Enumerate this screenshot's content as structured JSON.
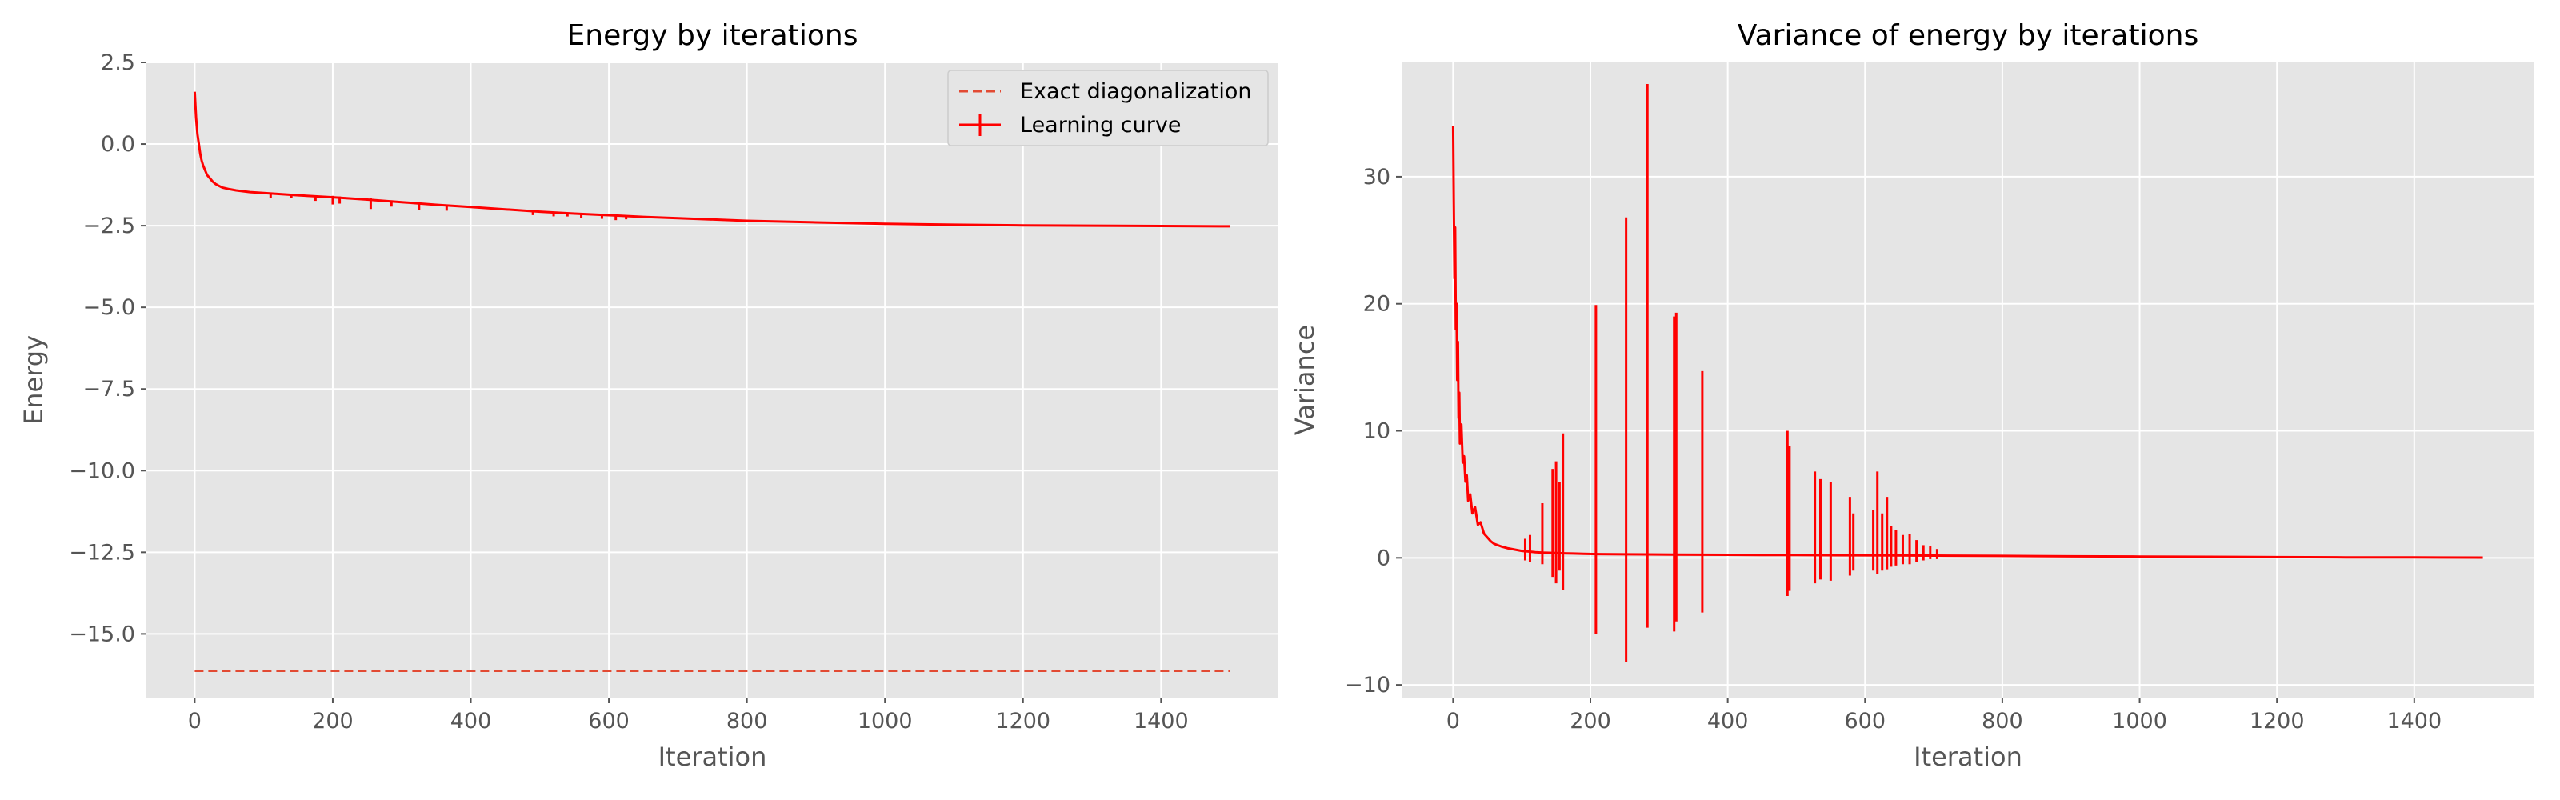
{
  "chart_data": [
    {
      "type": "line",
      "title": "Energy by iterations",
      "xlabel": "Iteration",
      "ylabel": "Energy",
      "xlim": [
        -70,
        1570
      ],
      "ylim": [
        -16.95,
        2.5
      ],
      "xticks": [
        0,
        200,
        400,
        600,
        800,
        1000,
        1200,
        1400
      ],
      "xtick_labels": [
        "0",
        "200",
        "400",
        "600",
        "800",
        "1000",
        "1200",
        "1400"
      ],
      "yticks": [
        2.5,
        0.0,
        -2.5,
        -5.0,
        -7.5,
        -10.0,
        -12.5,
        -15.0
      ],
      "ytick_labels": [
        "2.5",
        "0.0",
        "−2.5",
        "−5.0",
        "−7.5",
        "−10.0",
        "−12.5",
        "−15.0"
      ],
      "grid": true,
      "legend": {
        "placement": "upper right",
        "entries": [
          {
            "label": "Exact diagonalization",
            "style": "dashed"
          },
          {
            "label": "Learning curve",
            "style": "errorbar"
          }
        ]
      },
      "series": [
        {
          "name": "Exact diagonalization",
          "style": "dashed",
          "color": "#e24a33",
          "x": [
            0,
            1500
          ],
          "y": [
            -16.13,
            -16.13
          ]
        },
        {
          "name": "Learning curve",
          "style": "errorbar",
          "color": "#ff0000",
          "x": [
            0,
            2,
            4,
            6,
            8,
            10,
            12,
            15,
            18,
            22,
            26,
            30,
            35,
            40,
            50,
            60,
            80,
            100,
            150,
            200,
            250,
            300,
            350,
            400,
            450,
            500,
            550,
            600,
            650,
            700,
            800,
            900,
            1000,
            1100,
            1200,
            1300,
            1400,
            1500
          ],
          "y": [
            1.6,
            0.8,
            0.3,
            0.0,
            -0.3,
            -0.5,
            -0.65,
            -0.8,
            -0.95,
            -1.05,
            -1.15,
            -1.22,
            -1.28,
            -1.33,
            -1.38,
            -1.42,
            -1.47,
            -1.5,
            -1.57,
            -1.63,
            -1.7,
            -1.78,
            -1.86,
            -1.93,
            -2.0,
            -2.07,
            -2.13,
            -2.18,
            -2.23,
            -2.27,
            -2.35,
            -2.4,
            -2.44,
            -2.47,
            -2.49,
            -2.5,
            -2.51,
            -2.52
          ],
          "error_x": [
            110,
            140,
            175,
            200,
            210,
            255,
            285,
            325,
            365,
            490,
            520,
            540,
            560,
            590,
            610,
            625
          ],
          "error_y": [
            0.14,
            0.1,
            0.14,
            0.22,
            0.18,
            0.28,
            0.16,
            0.2,
            0.16,
            0.12,
            0.12,
            0.1,
            0.12,
            0.12,
            0.14,
            0.1
          ]
        }
      ]
    },
    {
      "type": "line",
      "title": "Variance of energy by iterations",
      "xlabel": "Iteration",
      "ylabel": "Variance",
      "xlim": [
        -75,
        1575
      ],
      "ylim": [
        -11.0,
        39.0
      ],
      "xticks": [
        0,
        200,
        400,
        600,
        800,
        1000,
        1200,
        1400
      ],
      "xtick_labels": [
        "0",
        "200",
        "400",
        "600",
        "800",
        "1000",
        "1200",
        "1400"
      ],
      "yticks": [
        30,
        20,
        10,
        0,
        -10
      ],
      "ytick_labels": [
        "30",
        "20",
        "10",
        "0",
        "−10"
      ],
      "grid": true,
      "series": [
        {
          "color": "#ff0000",
          "x": [
            0,
            1,
            2,
            3,
            4,
            5,
            6,
            7,
            8,
            9,
            10,
            12,
            14,
            16,
            18,
            20,
            22,
            25,
            28,
            32,
            36,
            40,
            45,
            50,
            55,
            60,
            70,
            80,
            90,
            100,
            110,
            120,
            130,
            140,
            150,
            160,
            175,
            190,
            210,
            230,
            250,
            280,
            320,
            360,
            400,
            450,
            500,
            550,
            600,
            650,
            700,
            720,
            800,
            900,
            1000,
            1100,
            1200,
            1300,
            1400,
            1500
          ],
          "y": [
            34.0,
            28.0,
            22.0,
            26.0,
            18.0,
            20.0,
            14.0,
            17.0,
            11.0,
            13.0,
            9.0,
            10.5,
            7.5,
            8.0,
            6.0,
            6.5,
            4.5,
            5.0,
            3.5,
            4.0,
            2.6,
            2.8,
            1.9,
            1.6,
            1.3,
            1.1,
            0.9,
            0.75,
            0.65,
            0.55,
            0.5,
            0.45,
            0.42,
            0.4,
            0.38,
            0.36,
            0.34,
            0.32,
            0.3,
            0.29,
            0.28,
            0.27,
            0.26,
            0.25,
            0.24,
            0.23,
            0.22,
            0.21,
            0.2,
            0.19,
            0.18,
            0.17,
            0.15,
            0.12,
            0.1,
            0.08,
            0.06,
            0.04,
            0.03,
            0.02
          ],
          "spikes": [
            {
              "x": 105,
              "y": [
                -0.2,
                1.5
              ]
            },
            {
              "x": 112,
              "y": [
                -0.3,
                1.8
              ]
            },
            {
              "x": 130,
              "y": [
                -0.5,
                4.3
              ]
            },
            {
              "x": 145,
              "y": [
                -1.5,
                7.0
              ]
            },
            {
              "x": 150,
              "y": [
                -2.0,
                7.6
              ]
            },
            {
              "x": 155,
              "y": [
                -1.0,
                6.0
              ]
            },
            {
              "x": 160,
              "y": [
                -2.5,
                9.8
              ]
            },
            {
              "x": 208,
              "y": [
                -6.0,
                19.9
              ]
            },
            {
              "x": 252,
              "y": [
                -8.2,
                26.8
              ]
            },
            {
              "x": 283,
              "y": [
                -5.5,
                37.3
              ]
            },
            {
              "x": 322,
              "y": [
                -5.8,
                19.0
              ]
            },
            {
              "x": 325,
              "y": [
                -5.0,
                19.3
              ]
            },
            {
              "x": 363,
              "y": [
                -4.3,
                14.7
              ]
            },
            {
              "x": 487,
              "y": [
                -3.0,
                10.0
              ]
            },
            {
              "x": 490,
              "y": [
                -2.6,
                8.8
              ]
            },
            {
              "x": 527,
              "y": [
                -2.0,
                6.8
              ]
            },
            {
              "x": 535,
              "y": [
                -1.7,
                6.2
              ]
            },
            {
              "x": 550,
              "y": [
                -1.8,
                6.0
              ]
            },
            {
              "x": 578,
              "y": [
                -1.4,
                4.8
              ]
            },
            {
              "x": 583,
              "y": [
                -1.0,
                3.5
              ]
            },
            {
              "x": 612,
              "y": [
                -1.0,
                3.8
              ]
            },
            {
              "x": 618,
              "y": [
                -1.3,
                6.8
              ]
            },
            {
              "x": 625,
              "y": [
                -1.0,
                3.5
              ]
            },
            {
              "x": 632,
              "y": [
                -0.9,
                4.8
              ]
            },
            {
              "x": 638,
              "y": [
                -0.7,
                2.5
              ]
            },
            {
              "x": 645,
              "y": [
                -0.6,
                2.2
              ]
            },
            {
              "x": 655,
              "y": [
                -0.5,
                1.8
              ]
            },
            {
              "x": 665,
              "y": [
                -0.5,
                1.9
              ]
            },
            {
              "x": 675,
              "y": [
                -0.3,
                1.4
              ]
            },
            {
              "x": 685,
              "y": [
                -0.2,
                1.0
              ]
            },
            {
              "x": 695,
              "y": [
                -0.1,
                0.9
              ]
            },
            {
              "x": 705,
              "y": [
                -0.1,
                0.7
              ]
            }
          ]
        }
      ]
    }
  ]
}
